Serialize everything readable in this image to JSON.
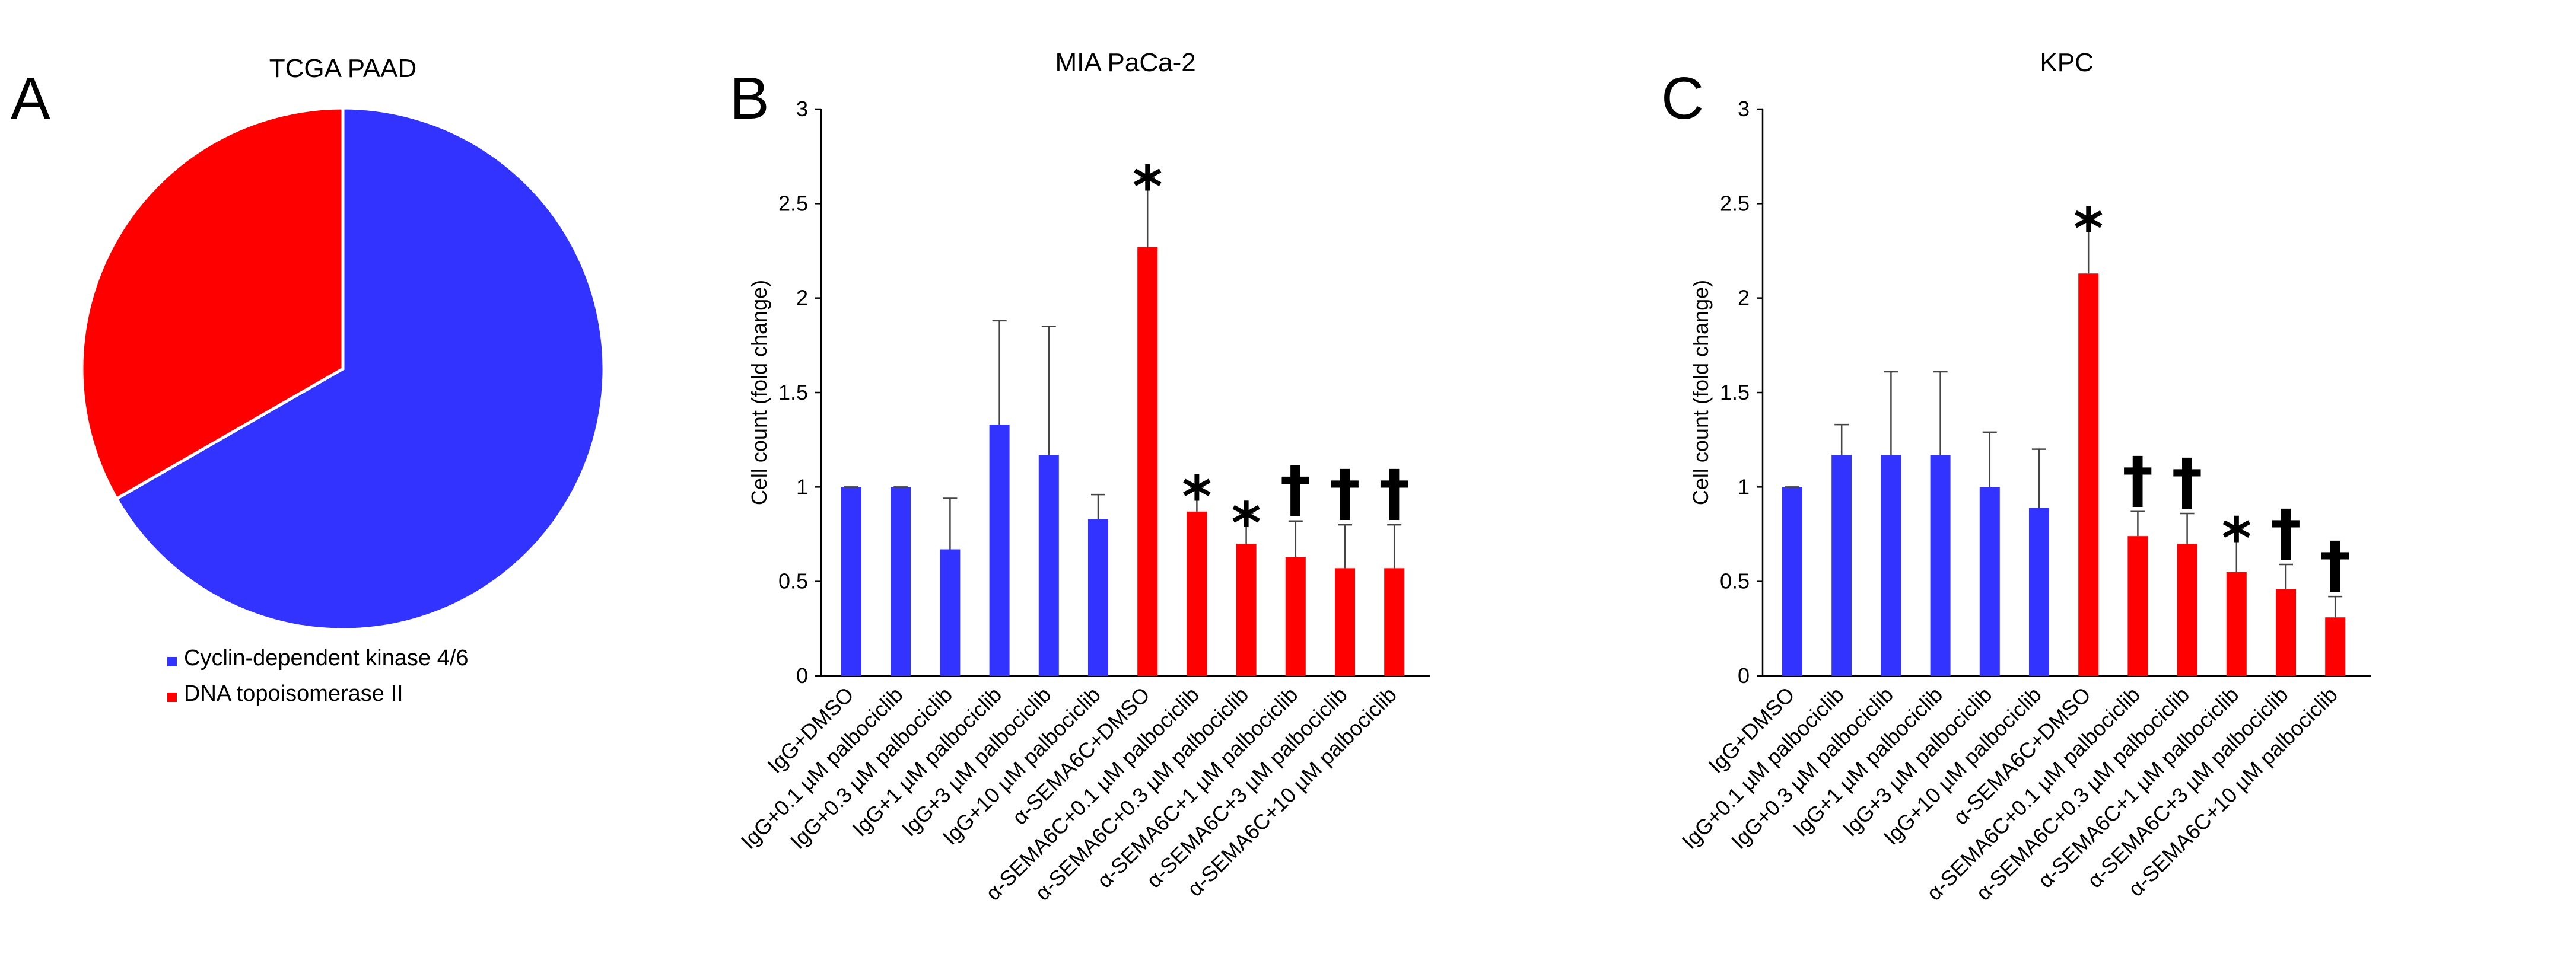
{
  "figure": {
    "panels": [
      "A",
      "B",
      "C"
    ]
  },
  "chart_data": [
    {
      "type": "pie",
      "title": "TCGA PAAD",
      "slices": [
        {
          "label": "Cyclin-dependent kinase 4/6",
          "value": 66.7,
          "color": "#3333ff"
        },
        {
          "label": "DNA topoisomerase II",
          "value": 33.3,
          "color": "#ff0000"
        }
      ],
      "legend_position": "bottom"
    },
    {
      "type": "bar",
      "title": "MIA PaCa-2",
      "ylabel": "Cell count (fold change)",
      "ylim": [
        0,
        3
      ],
      "yticks": [
        "0",
        "0.5",
        "1",
        "1.5",
        "2",
        "2.5",
        "3"
      ],
      "categories": [
        "IgG+DMSO",
        "IgG+0.1 µM palbociclib",
        "IgG+0.3 µM palbociclib",
        "IgG+1 µM palbociclib",
        "IgG+3 µM palbociclib",
        "IgG+10 µM palbociclib",
        "α-SEMA6C+DMSO",
        "α-SEMA6C+0.1 µM palbociclib",
        "α-SEMA6C+0.3 µM palbociclib",
        "α-SEMA6C+1 µM palbociclib",
        "α-SEMA6C+3 µM palbociclib",
        "α-SEMA6C+10 µM palbociclib"
      ],
      "values": [
        1.0,
        1.0,
        0.67,
        1.33,
        1.17,
        0.83,
        2.27,
        0.87,
        0.7,
        0.63,
        0.57,
        0.57
      ],
      "errors": [
        0.0,
        0.0,
        0.27,
        0.55,
        0.68,
        0.13,
        0.37,
        0.13,
        0.16,
        0.19,
        0.23,
        0.23
      ],
      "colors": [
        "#3333ff",
        "#3333ff",
        "#3333ff",
        "#3333ff",
        "#3333ff",
        "#3333ff",
        "#ff0000",
        "#ff0000",
        "#ff0000",
        "#ff0000",
        "#ff0000",
        "#ff0000"
      ],
      "annotations": [
        "",
        "",
        "",
        "",
        "",
        "",
        "*",
        "*",
        "*",
        "†",
        "†",
        "†"
      ],
      "grid": false
    },
    {
      "type": "bar",
      "title": "KPC",
      "ylabel": "Cell count (fold change)",
      "ylim": [
        0,
        3
      ],
      "yticks": [
        "0",
        "0.5",
        "1",
        "1.5",
        "2",
        "2.5",
        "3"
      ],
      "categories": [
        "IgG+DMSO",
        "IgG+0.1 µM palbociclib",
        "IgG+0.3 µM palbociclib",
        "IgG+1 µM palbociclib",
        "IgG+3 µM palbociclib",
        "IgG+10 µM palbociclib",
        "α-SEMA6C+DMSO",
        "α-SEMA6C+0.1 µM palbociclib",
        "α-SEMA6C+0.3 µM palbociclib",
        "α-SEMA6C+1 µM palbociclib",
        "α-SEMA6C+3 µM palbociclib",
        "α-SEMA6C+10 µM palbociclib"
      ],
      "values": [
        1.0,
        1.17,
        1.17,
        1.17,
        1.0,
        0.89,
        2.13,
        0.74,
        0.7,
        0.55,
        0.46,
        0.31
      ],
      "errors": [
        0.0,
        0.16,
        0.44,
        0.44,
        0.29,
        0.31,
        0.29,
        0.13,
        0.16,
        0.23,
        0.13,
        0.11
      ],
      "colors": [
        "#3333ff",
        "#3333ff",
        "#3333ff",
        "#3333ff",
        "#3333ff",
        "#3333ff",
        "#ff0000",
        "#ff0000",
        "#ff0000",
        "#ff0000",
        "#ff0000",
        "#ff0000"
      ],
      "annotations": [
        "",
        "",
        "",
        "",
        "",
        "",
        "*",
        "†",
        "†",
        "*",
        "†",
        "†"
      ],
      "grid": false
    }
  ]
}
